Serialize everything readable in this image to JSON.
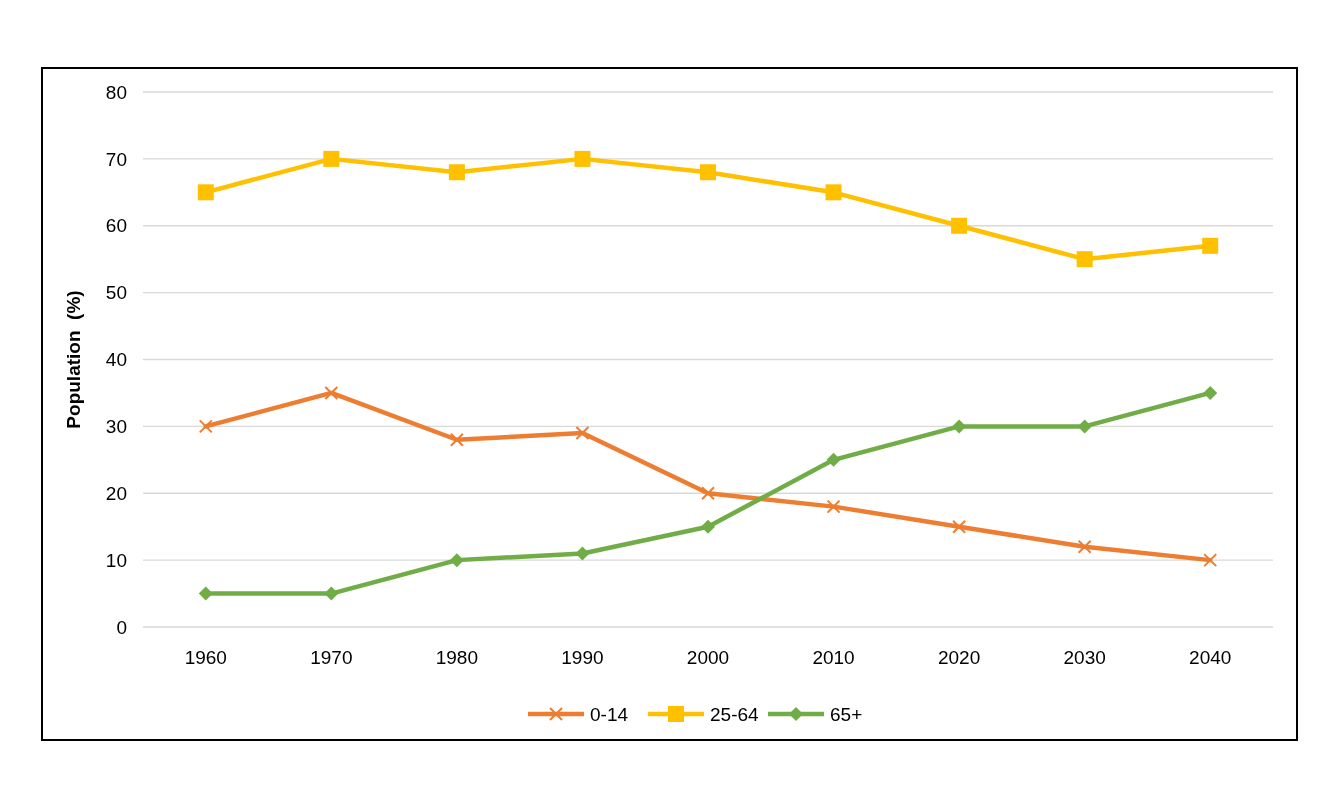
{
  "chart_data": {
    "type": "line",
    "ylabel": "Population  (%)",
    "categories": [
      "1960",
      "1970",
      "1980",
      "1990",
      "2000",
      "2010",
      "2020",
      "2030",
      "2040"
    ],
    "series": [
      {
        "name": "0-14",
        "color": "#ed7d31",
        "marker": "cross",
        "values": [
          30,
          35,
          28,
          29,
          20,
          18,
          15,
          12,
          10
        ]
      },
      {
        "name": "25-64",
        "color": "#ffc000",
        "marker": "square",
        "values": [
          65,
          70,
          68,
          70,
          68,
          65,
          60,
          55,
          57
        ]
      },
      {
        "name": "65+",
        "color": "#70ad47",
        "marker": "diamond",
        "values": [
          5,
          5,
          10,
          11,
          15,
          25,
          30,
          30,
          35
        ]
      }
    ],
    "ylim": [
      0,
      80
    ],
    "yticks": [
      0,
      10,
      20,
      30,
      40,
      50,
      60,
      70,
      80
    ],
    "grid": "y",
    "legend": "bottom"
  }
}
